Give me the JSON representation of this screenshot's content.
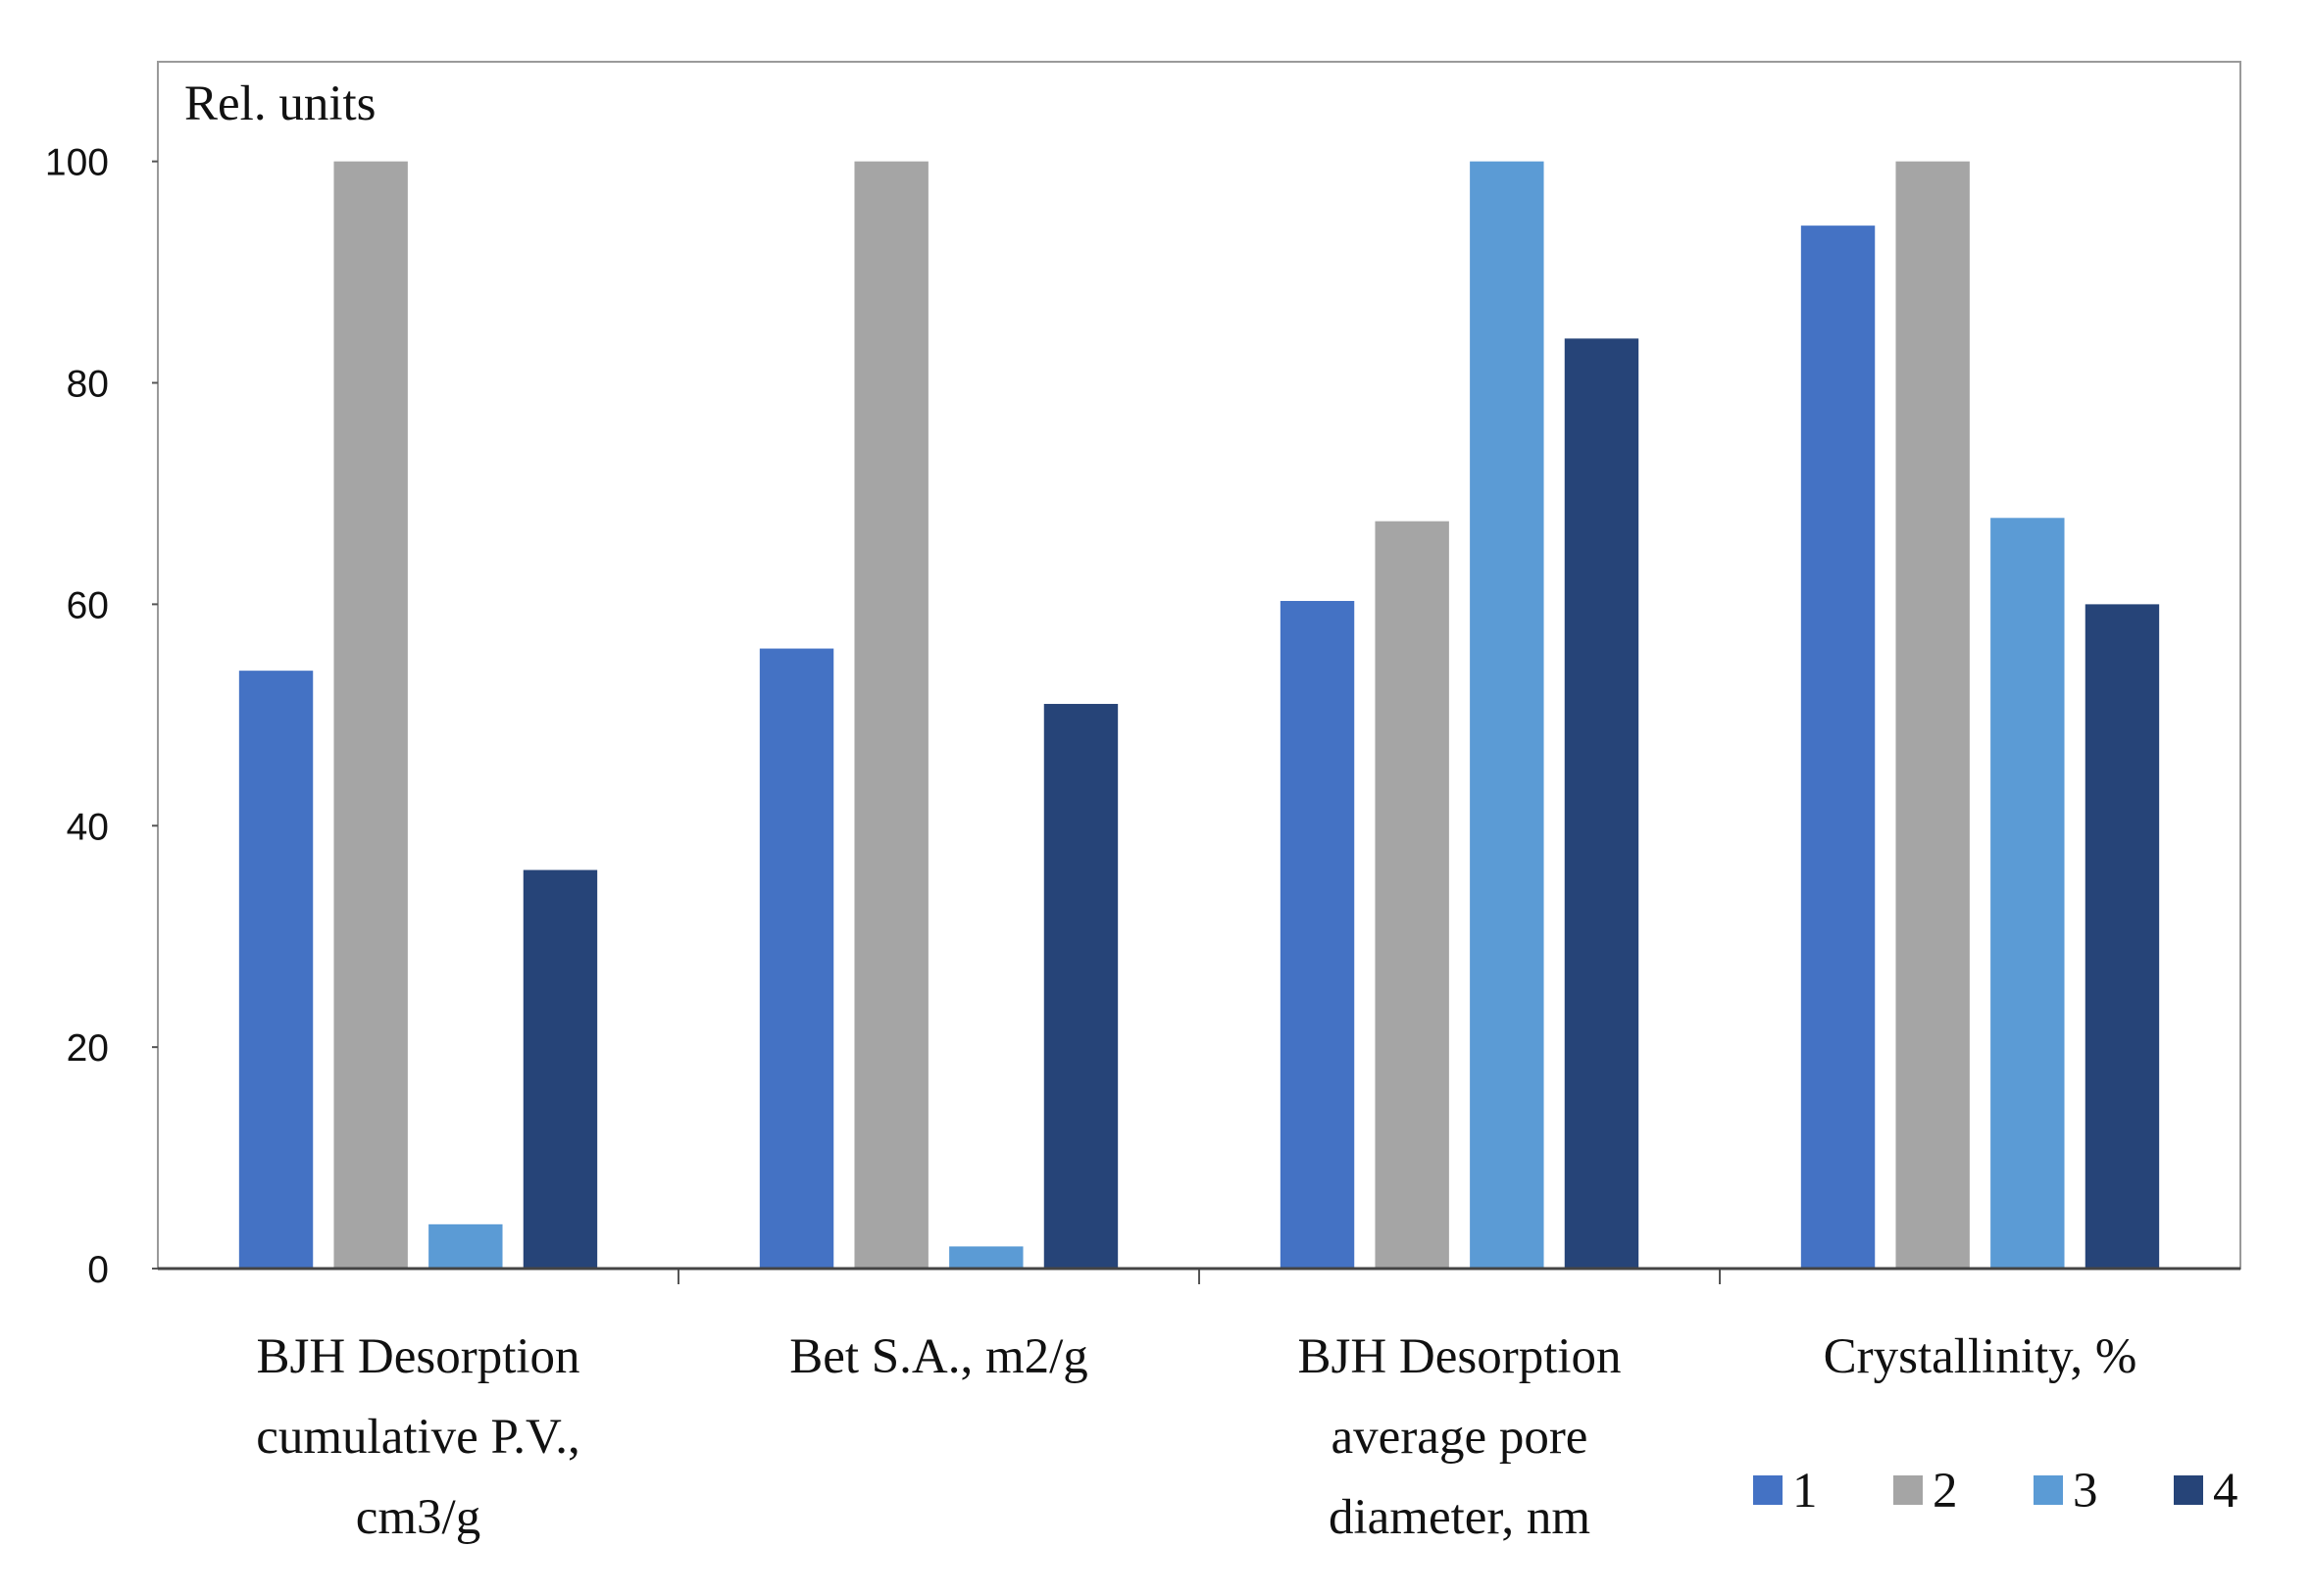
{
  "chart_data": {
    "type": "bar",
    "y_label": "Rel. units",
    "categories": [
      [
        "BJH Desorption",
        "cumulative P.V.,",
        "cm3/g"
      ],
      [
        "Bet S.A., m2/g"
      ],
      [
        "BJH Desorption",
        "average pore",
        "diameter, nm"
      ],
      [
        "Crystallinity, %"
      ]
    ],
    "series": [
      {
        "name": "1",
        "color": "#4472c4",
        "values": [
          54,
          56,
          60.3,
          94.2
        ]
      },
      {
        "name": "2",
        "color": "#a5a5a5",
        "values": [
          100,
          100,
          67.5,
          100
        ]
      },
      {
        "name": "3",
        "color": "#5b9bd5",
        "values": [
          4,
          2,
          100,
          67.8
        ]
      },
      {
        "name": "4",
        "color": "#264478",
        "values": [
          36,
          51,
          84,
          60
        ]
      }
    ],
    "ylim": [
      0,
      109
    ],
    "yticks": [
      0,
      20,
      40,
      60,
      80,
      100
    ],
    "legend": "bottom-right"
  }
}
